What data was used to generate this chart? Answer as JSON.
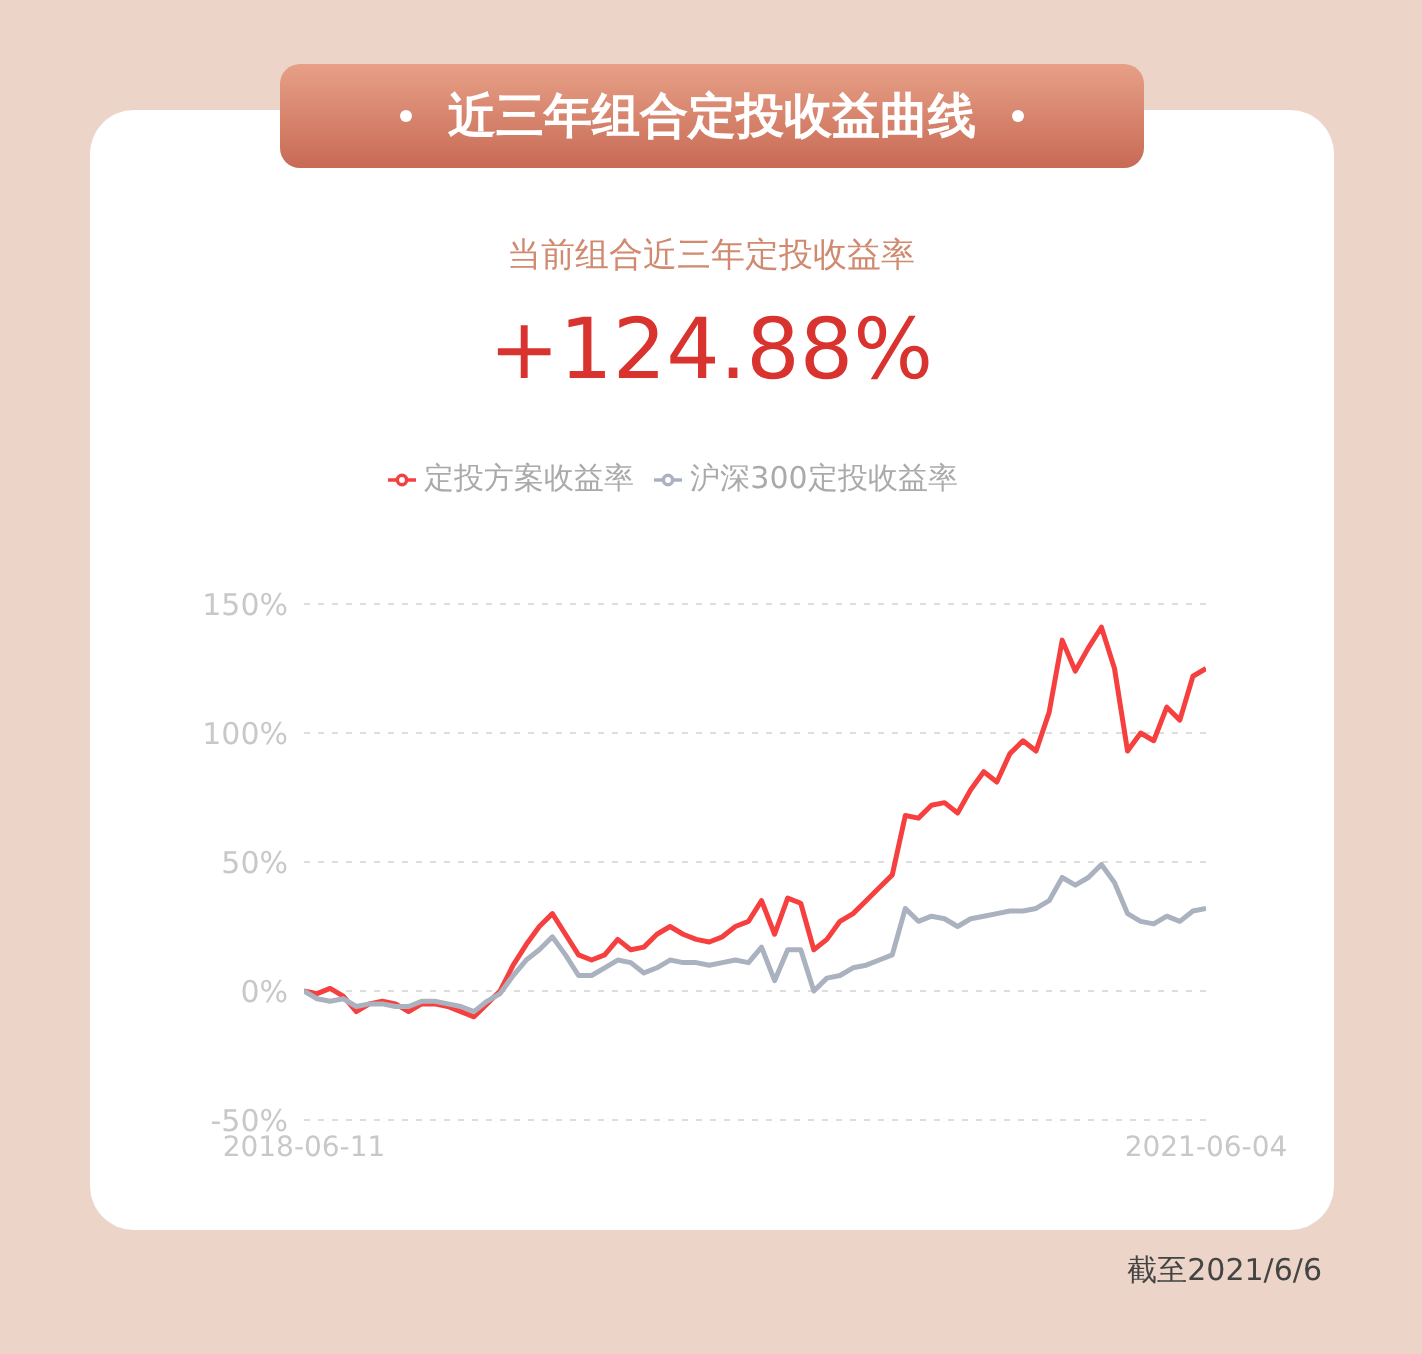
{
  "chart_data": {
    "type": "line",
    "title": "近三年组合定投收益曲线",
    "subtitle": "当前组合近三年定投收益率",
    "annotations": [
      "+124.88%",
      "截至2021/6/6"
    ],
    "categories": [
      "2018-06-11",
      null,
      null,
      null,
      null,
      null,
      null,
      null,
      null,
      null,
      null,
      null,
      null,
      null,
      null,
      null,
      null,
      null,
      null,
      null,
      null,
      null,
      null,
      null,
      null,
      null,
      null,
      null,
      null,
      null,
      null,
      null,
      null,
      null,
      null,
      null,
      null,
      null,
      null,
      null,
      null,
      null,
      null,
      null,
      null,
      null,
      null,
      null,
      null,
      null,
      null,
      null,
      null,
      null,
      null,
      null,
      null,
      null,
      null,
      null,
      null,
      null,
      null,
      null,
      null,
      null,
      null,
      null,
      null,
      "2021-06-04"
    ],
    "series": [
      {
        "name": "定投方案收益率",
        "color": "#f5403f",
        "values": [
          0,
          -1,
          1,
          -2,
          -8,
          -5,
          -4,
          -5,
          -8,
          -5,
          -5,
          -6,
          -8,
          -10,
          -5,
          0,
          10,
          18,
          25,
          30,
          22,
          14,
          12,
          14,
          20,
          16,
          17,
          22,
          25,
          22,
          20,
          19,
          21,
          25,
          27,
          35,
          22,
          36,
          34,
          16,
          20,
          27,
          30,
          35,
          40,
          45,
          68,
          67,
          72,
          73,
          69,
          78,
          85,
          81,
          92,
          97,
          93,
          108,
          136,
          124,
          133,
          141,
          125,
          93,
          100,
          97,
          110,
          105,
          122,
          125
        ]
      },
      {
        "name": "沪深300定投收益率",
        "color": "#aab2c0",
        "values": [
          0,
          -3,
          -4,
          -3,
          -6,
          -5,
          -5,
          -6,
          -6,
          -4,
          -4,
          -5,
          -6,
          -8,
          -4,
          -1,
          6,
          12,
          16,
          21,
          14,
          6,
          6,
          9,
          12,
          11,
          7,
          9,
          12,
          11,
          11,
          10,
          11,
          12,
          11,
          17,
          4,
          16,
          16,
          0,
          5,
          6,
          9,
          10,
          12,
          14,
          32,
          27,
          29,
          28,
          25,
          28,
          29,
          30,
          31,
          31,
          32,
          35,
          44,
          41,
          44,
          49,
          42,
          30,
          27,
          26,
          29,
          27,
          31,
          32
        ]
      }
    ],
    "ylim": [
      -50,
      150
    ],
    "yticks": [
      {
        "value": -50,
        "label": "-50%"
      },
      {
        "value": 0,
        "label": "0%"
      },
      {
        "value": 50,
        "label": "50%"
      },
      {
        "value": 100,
        "label": "100%"
      },
      {
        "value": 150,
        "label": "150%"
      }
    ],
    "grid": "y",
    "legend": "top",
    "marker": "none",
    "line_style": "solid"
  }
}
